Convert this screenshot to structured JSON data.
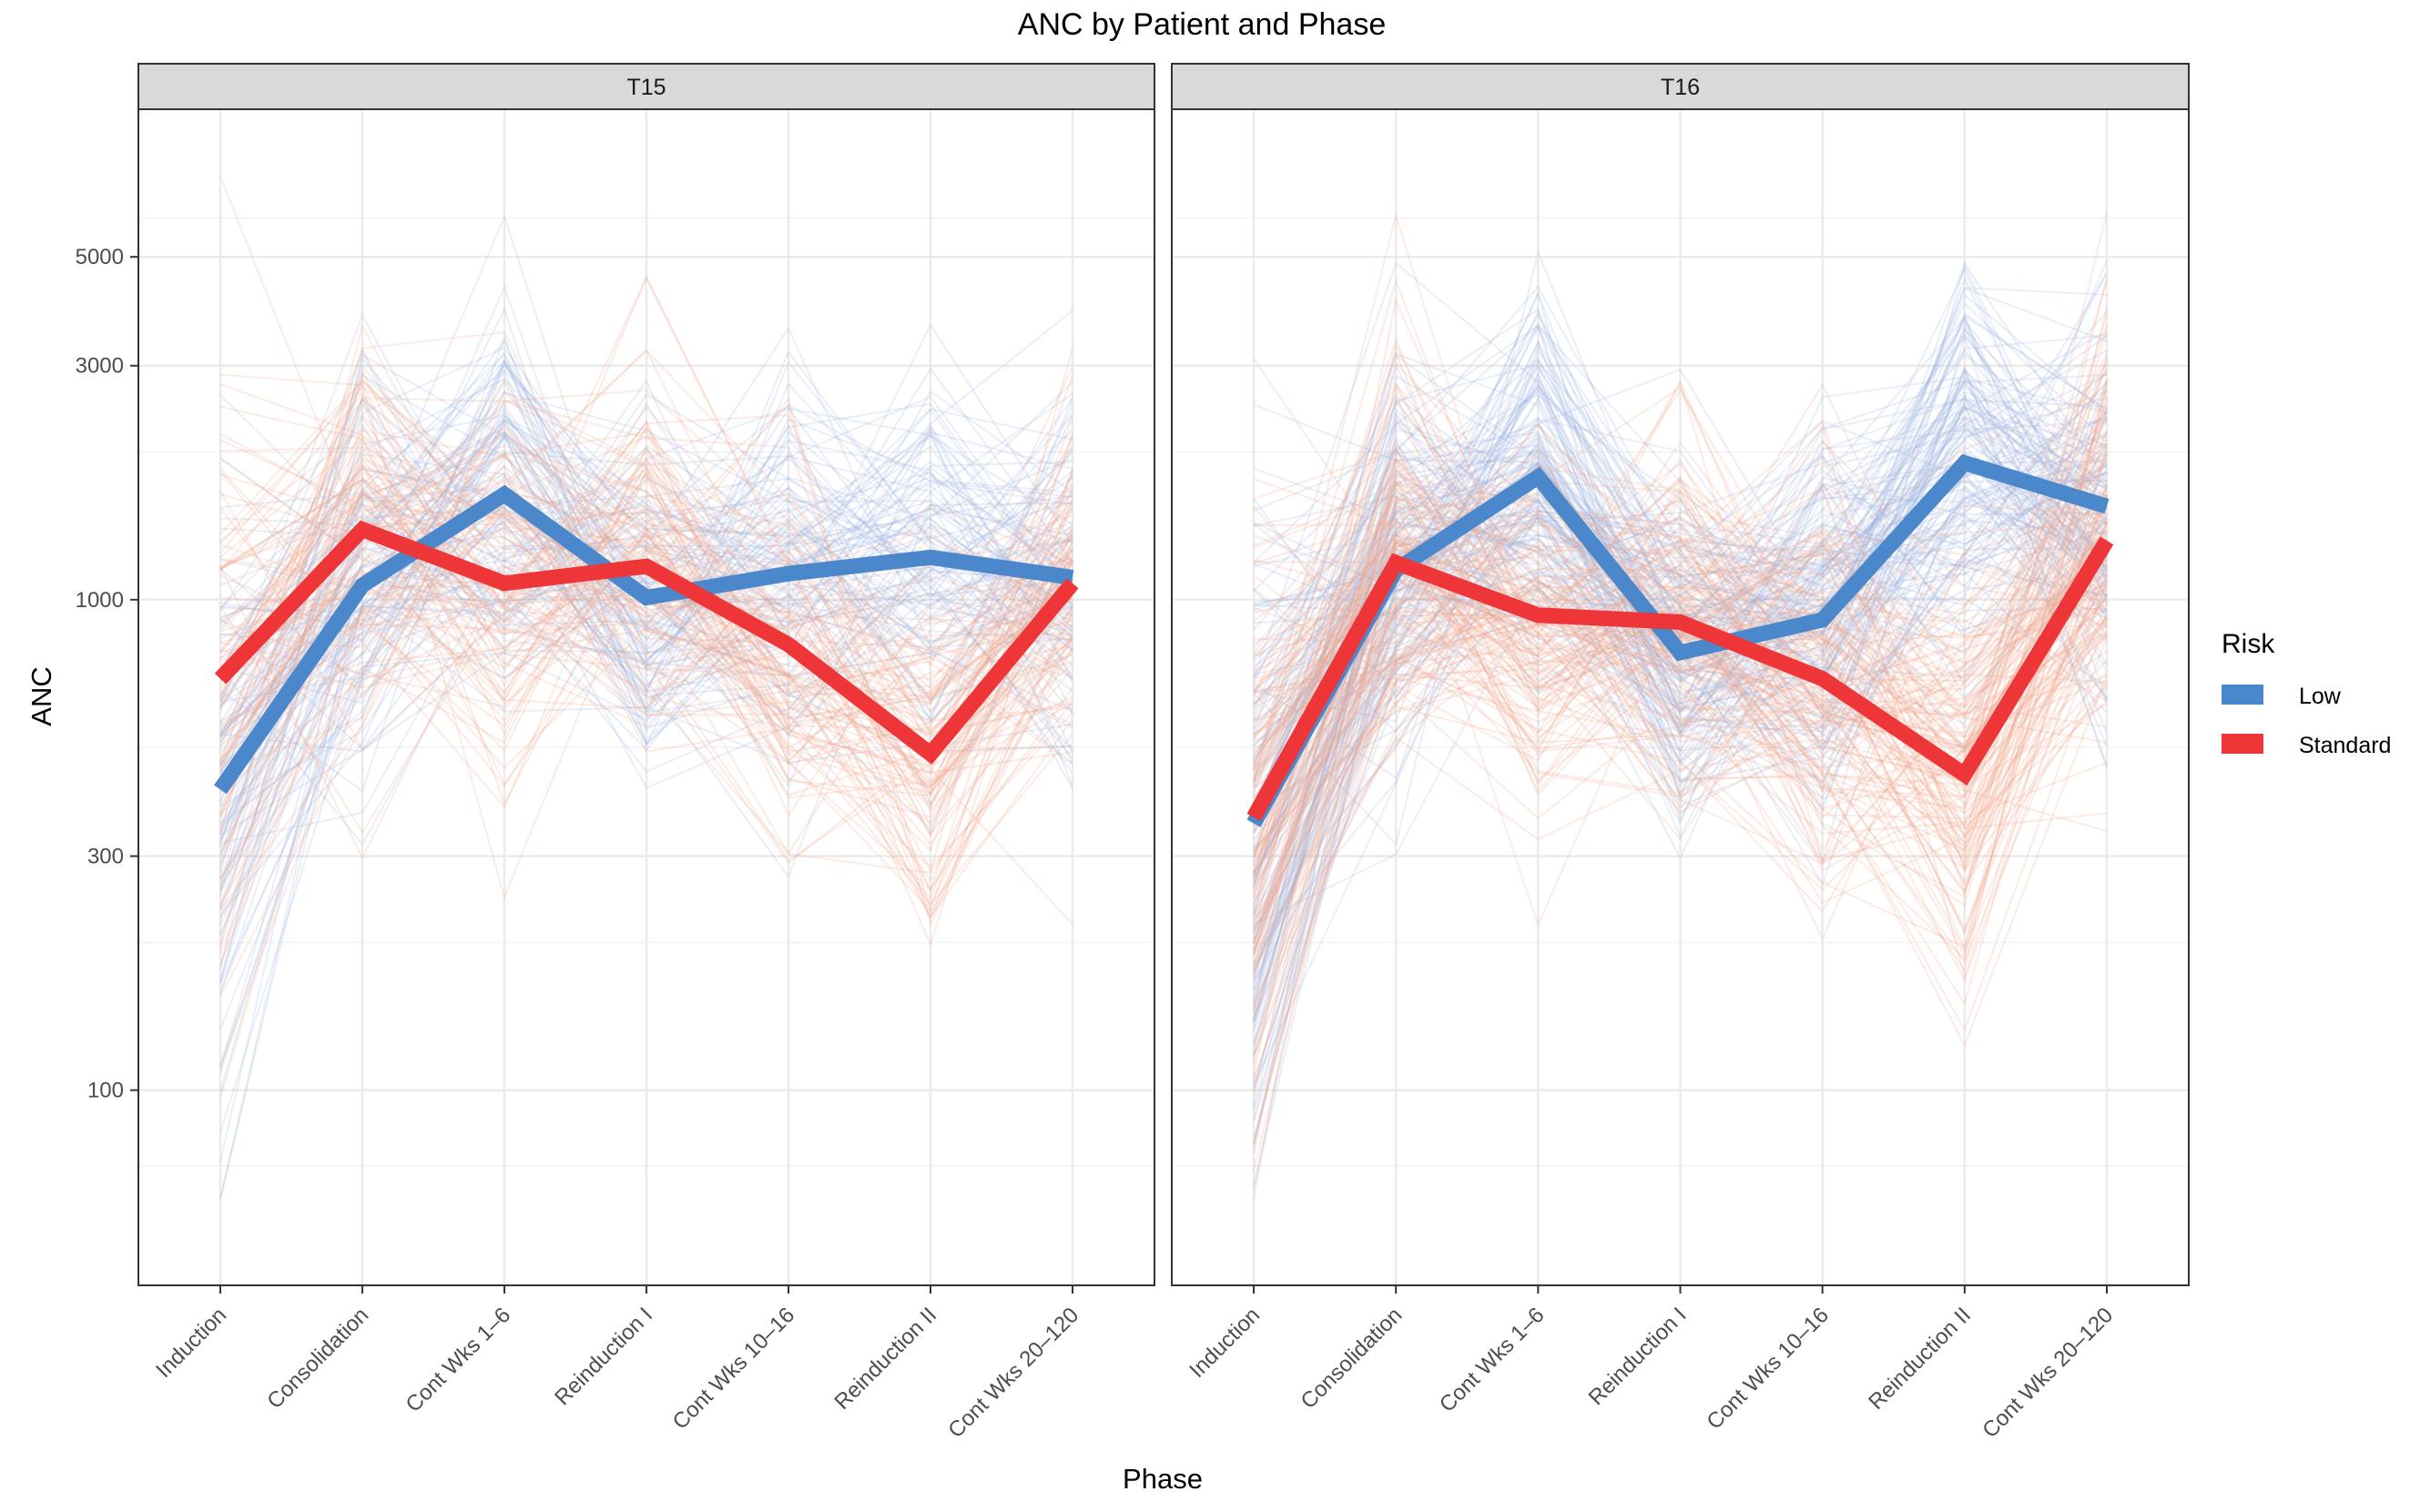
{
  "chart_data": {
    "type": "line",
    "title": "ANC by Patient and Phase",
    "xlabel": "Phase",
    "ylabel": "ANC",
    "yscale": "log10",
    "ylim": [
      40,
      10000
    ],
    "yticks": [
      100,
      300,
      1000,
      3000,
      5000
    ],
    "ytick_labels": [
      "100",
      "300",
      "1000",
      "3000",
      "5000"
    ],
    "categories": [
      "Induction",
      "Consolidation",
      "Cont Wks 1–6",
      "Reinduction I",
      "Cont Wks 10–16",
      "Reinduction II",
      "Cont Wks 20–120"
    ],
    "legend": {
      "title": "Risk",
      "position": "right",
      "entries": [
        {
          "name": "Low",
          "color": "#4A88CB"
        },
        {
          "name": "Standard",
          "color": "#EE3538"
        }
      ]
    },
    "panels": [
      {
        "label": "T15",
        "series": [
          {
            "name": "Low",
            "values": [
              410,
              1070,
              1640,
              1010,
              1130,
              1220,
              1110
            ]
          },
          {
            "name": "Standard",
            "values": [
              690,
              1390,
              1080,
              1170,
              810,
              485,
              1080
            ]
          }
        ]
      },
      {
        "label": "T16",
        "series": [
          {
            "name": "Low",
            "values": [
              350,
              1150,
              1780,
              780,
              910,
              1900,
              1550
            ]
          },
          {
            "name": "Standard",
            "values": [
              360,
              1190,
              930,
              900,
              690,
              440,
              1320
            ]
          }
        ]
      }
    ]
  },
  "colors": {
    "low": "#4A88CB",
    "standard": "#EE3538",
    "low_faint": "#9DB3E0",
    "standard_faint": "#F2A287",
    "strip": "#D9D9D9",
    "grid": "#EBEBEB"
  }
}
